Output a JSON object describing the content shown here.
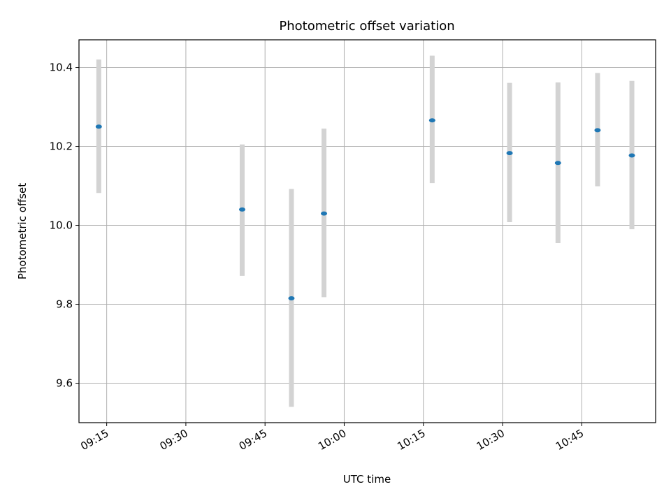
{
  "chart_data": {
    "type": "scatter",
    "title": "Photometric offset variation",
    "xlabel": "UTC time",
    "ylabel": "Photometric offset",
    "x_ticks": [
      "09:15",
      "09:30",
      "09:45",
      "10:00",
      "10:15",
      "10:30",
      "10:45"
    ],
    "y_ticks": [
      "9.6",
      "9.8",
      "10.0",
      "10.2",
      "10.4"
    ],
    "ylim": [
      9.5,
      10.47
    ],
    "xlim": [
      "09:09:45",
      "10:59:00"
    ],
    "grid": true,
    "marker_color": "#1f77b4",
    "errorbar_color": "#d3d3d3",
    "series": [
      {
        "points": [
          {
            "x": "09:13:30",
            "y": 10.25,
            "ylow": 10.082,
            "yhigh": 10.42
          },
          {
            "x": "09:40:40",
            "y": 10.04,
            "ylow": 9.872,
            "yhigh": 10.205
          },
          {
            "x": "09:50:00",
            "y": 9.815,
            "ylow": 9.54,
            "yhigh": 10.092
          },
          {
            "x": "09:56:10",
            "y": 10.03,
            "ylow": 9.818,
            "yhigh": 10.245
          },
          {
            "x": "10:16:40",
            "y": 10.266,
            "ylow": 10.107,
            "yhigh": 10.43
          },
          {
            "x": "10:31:20",
            "y": 10.183,
            "ylow": 10.008,
            "yhigh": 10.361
          },
          {
            "x": "10:40:30",
            "y": 10.158,
            "ylow": 9.955,
            "yhigh": 10.362
          },
          {
            "x": "10:48:00",
            "y": 10.241,
            "ylow": 10.099,
            "yhigh": 10.386
          },
          {
            "x": "10:54:30",
            "y": 10.177,
            "ylow": 9.99,
            "yhigh": 10.366
          }
        ]
      }
    ]
  }
}
